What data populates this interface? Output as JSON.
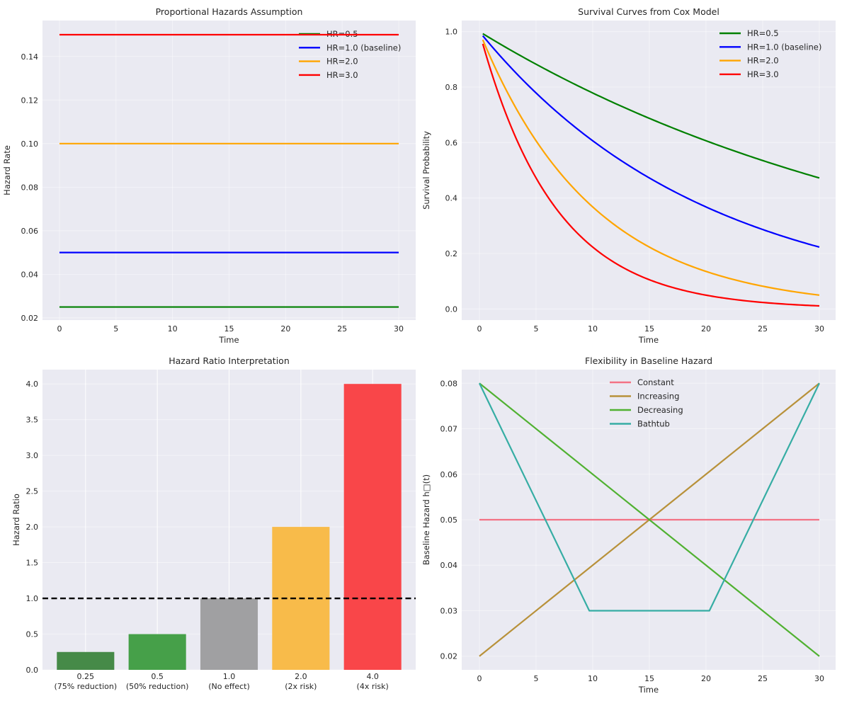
{
  "chart_data": [
    {
      "id": "proportional",
      "type": "line",
      "title": "Proportional Hazards Assumption",
      "xlabel": "Time",
      "ylabel": "Hazard Rate",
      "xlim": [
        -1.5,
        31.5
      ],
      "ylim": [
        0.019,
        0.1565
      ],
      "xticks": [
        0,
        5,
        10,
        15,
        20,
        25,
        30
      ],
      "xtick_labels": [
        "0",
        "5",
        "10",
        "15",
        "20",
        "25",
        "30"
      ],
      "yticks": [
        0.02,
        0.04,
        0.06,
        0.08,
        0.1,
        0.12,
        0.14
      ],
      "ytick_labels": [
        "0.02",
        "0.04",
        "0.06",
        "0.08",
        "0.10",
        "0.12",
        "0.14"
      ],
      "grid": true,
      "legend": "top-right",
      "series": [
        {
          "name": "HR=0.5",
          "color": "#008000",
          "x": [
            0,
            30
          ],
          "y": [
            0.025,
            0.025
          ]
        },
        {
          "name": "HR=1.0 (baseline)",
          "color": "#0000ff",
          "x": [
            0,
            30
          ],
          "y": [
            0.05,
            0.05
          ]
        },
        {
          "name": "HR=2.0",
          "color": "#ffa500",
          "x": [
            0,
            30
          ],
          "y": [
            0.1,
            0.1
          ]
        },
        {
          "name": "HR=3.0",
          "color": "#ff0000",
          "x": [
            0,
            30
          ],
          "y": [
            0.15,
            0.15
          ]
        }
      ]
    },
    {
      "id": "survival",
      "type": "line",
      "title": "Survival Curves from Cox Model",
      "xlabel": "Time",
      "ylabel": "Survival Probability",
      "xlim": [
        -1.56,
        31.44
      ],
      "ylim": [
        -0.04,
        1.04
      ],
      "xticks": [
        0,
        5,
        10,
        15,
        20,
        25,
        30
      ],
      "xtick_labels": [
        "0",
        "5",
        "10",
        "15",
        "20",
        "25",
        "30"
      ],
      "yticks": [
        0.0,
        0.2,
        0.4,
        0.6,
        0.8,
        1.0
      ],
      "ytick_labels": [
        "0.0",
        "0.2",
        "0.4",
        "0.6",
        "0.8",
        "1.0"
      ],
      "grid": true,
      "legend": "top-right",
      "baseline_hazard": 0.05,
      "t_range": [
        0.3,
        30
      ],
      "series": [
        {
          "name": "HR=0.5",
          "color": "#008000",
          "hr": 0.5,
          "y_start": 0.993,
          "y_end": 0.472
        },
        {
          "name": "HR=1.0 (baseline)",
          "color": "#0000ff",
          "hr": 1.0,
          "y_start": 0.985,
          "y_end": 0.223
        },
        {
          "name": "HR=2.0",
          "color": "#ffa500",
          "hr": 2.0,
          "y_start": 0.97,
          "y_end": 0.05
        },
        {
          "name": "HR=3.0",
          "color": "#ff0000",
          "hr": 3.0,
          "y_start": 0.956,
          "y_end": 0.011
        }
      ]
    },
    {
      "id": "hr-bars",
      "type": "bar",
      "title": "Hazard Ratio Interpretation",
      "xlabel": "",
      "ylabel": "Hazard Ratio",
      "ylim": [
        0,
        4.2
      ],
      "yticks": [
        0.0,
        0.5,
        1.0,
        1.5,
        2.0,
        2.5,
        3.0,
        3.5,
        4.0
      ],
      "ytick_labels": [
        "0.0",
        "0.5",
        "1.0",
        "1.5",
        "2.0",
        "2.5",
        "3.0",
        "3.5",
        "4.0"
      ],
      "grid": true,
      "categories": [
        [
          "0.25",
          "(75% reduction)"
        ],
        [
          "0.5",
          "(50% reduction)"
        ],
        [
          "1.0",
          "(No effect)"
        ],
        [
          "2.0",
          "(2x risk)"
        ],
        [
          "4.0",
          "(4x risk)"
        ]
      ],
      "values": [
        0.25,
        0.5,
        1.0,
        2.0,
        4.0
      ],
      "colors": [
        "#468a48",
        "#46a049",
        "#a0a0a2",
        "#f8bb4a",
        "#f94649"
      ],
      "reference_line": {
        "y": 1.0,
        "style": "dashed",
        "color": "#000000"
      }
    },
    {
      "id": "baseline-flex",
      "type": "line",
      "title": "Flexibility in Baseline Hazard",
      "xlabel": "Time",
      "ylabel": "Baseline Hazard h□(t)",
      "xlim": [
        -1.56,
        31.44
      ],
      "ylim": [
        0.017,
        0.083
      ],
      "xticks": [
        0,
        5,
        10,
        15,
        20,
        25,
        30
      ],
      "xtick_labels": [
        "0",
        "5",
        "10",
        "15",
        "20",
        "25",
        "30"
      ],
      "yticks": [
        0.02,
        0.03,
        0.04,
        0.05,
        0.06,
        0.07,
        0.08
      ],
      "ytick_labels": [
        "0.02",
        "0.03",
        "0.04",
        "0.05",
        "0.06",
        "0.07",
        "0.08"
      ],
      "grid": true,
      "legend": "top-center",
      "series": [
        {
          "name": "Constant",
          "color": "#f37284",
          "x": [
            0,
            30
          ],
          "y": [
            0.05,
            0.05
          ]
        },
        {
          "name": "Increasing",
          "color": "#b8913a",
          "x": [
            0,
            30
          ],
          "y": [
            0.02,
            0.08
          ]
        },
        {
          "name": "Decreasing",
          "color": "#50b131",
          "x": [
            0,
            30
          ],
          "y": [
            0.08,
            0.02
          ]
        },
        {
          "name": "Bathtub",
          "color": "#36ada4",
          "x": [
            0,
            9.7,
            20.3,
            30
          ],
          "y": [
            0.08,
            0.03,
            0.03,
            0.08
          ]
        }
      ]
    }
  ]
}
